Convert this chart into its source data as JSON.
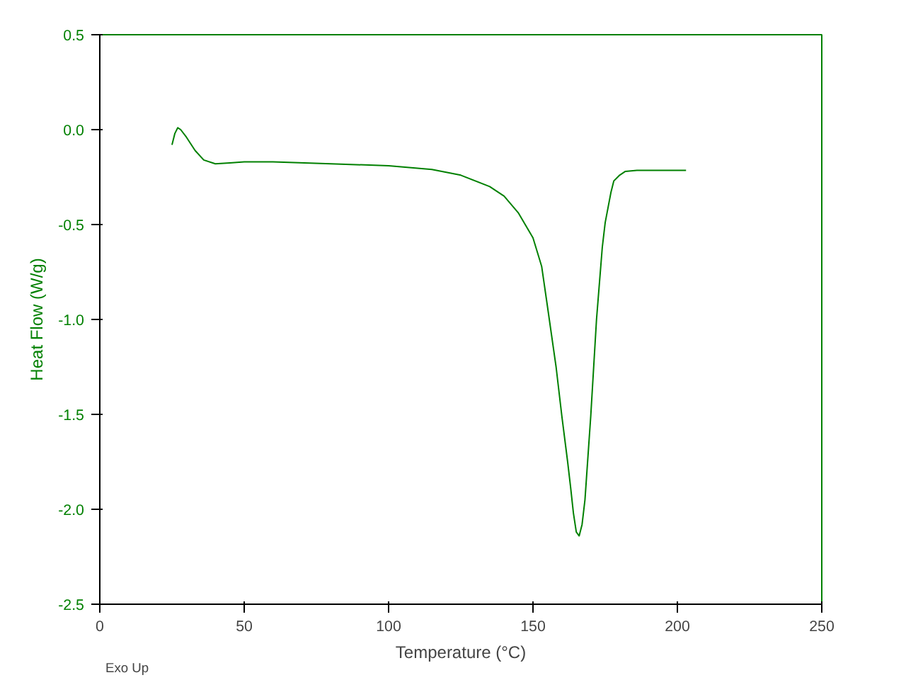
{
  "chart_data": {
    "type": "line",
    "xlabel": "Temperature (°C)",
    "ylabel": "Heat Flow (W/g)",
    "annotations": [
      "Exo Up"
    ],
    "x": [
      25,
      26,
      27,
      28,
      30,
      33,
      36,
      40,
      45,
      50,
      60,
      80,
      100,
      115,
      125,
      135,
      140,
      145,
      150,
      153,
      155,
      158,
      160,
      162,
      163,
      164,
      165,
      166,
      167,
      168,
      170,
      172,
      174,
      175,
      177,
      178,
      180,
      182,
      186,
      190,
      203
    ],
    "series": [
      {
        "color": "#008000",
        "values": [
          -0.08,
          -0.02,
          0.01,
          0.0,
          -0.04,
          -0.11,
          -0.16,
          -0.18,
          -0.175,
          -0.17,
          -0.17,
          -0.18,
          -0.19,
          -0.21,
          -0.24,
          -0.3,
          -0.35,
          -0.44,
          -0.57,
          -0.72,
          -0.93,
          -1.25,
          -1.51,
          -1.75,
          -1.88,
          -2.02,
          -2.12,
          -2.14,
          -2.08,
          -1.95,
          -1.51,
          -1.0,
          -0.62,
          -0.49,
          -0.33,
          -0.27,
          -0.24,
          -0.22,
          -0.215,
          -0.215,
          -0.215
        ]
      }
    ],
    "xlim": [
      0,
      250
    ],
    "ylim": [
      -2.5,
      0.5
    ],
    "xticks": [
      0,
      50,
      100,
      150,
      200,
      250
    ],
    "yticks": [
      0.5,
      {
        "value": 0,
        "label": "0.0"
      },
      -0.5,
      {
        "value": -1,
        "label": "-1.0"
      },
      -1.5,
      {
        "value": -2,
        "label": "-2.0"
      },
      -2.5
    ],
    "grid": false,
    "marker": "none",
    "line_style": "solid"
  }
}
